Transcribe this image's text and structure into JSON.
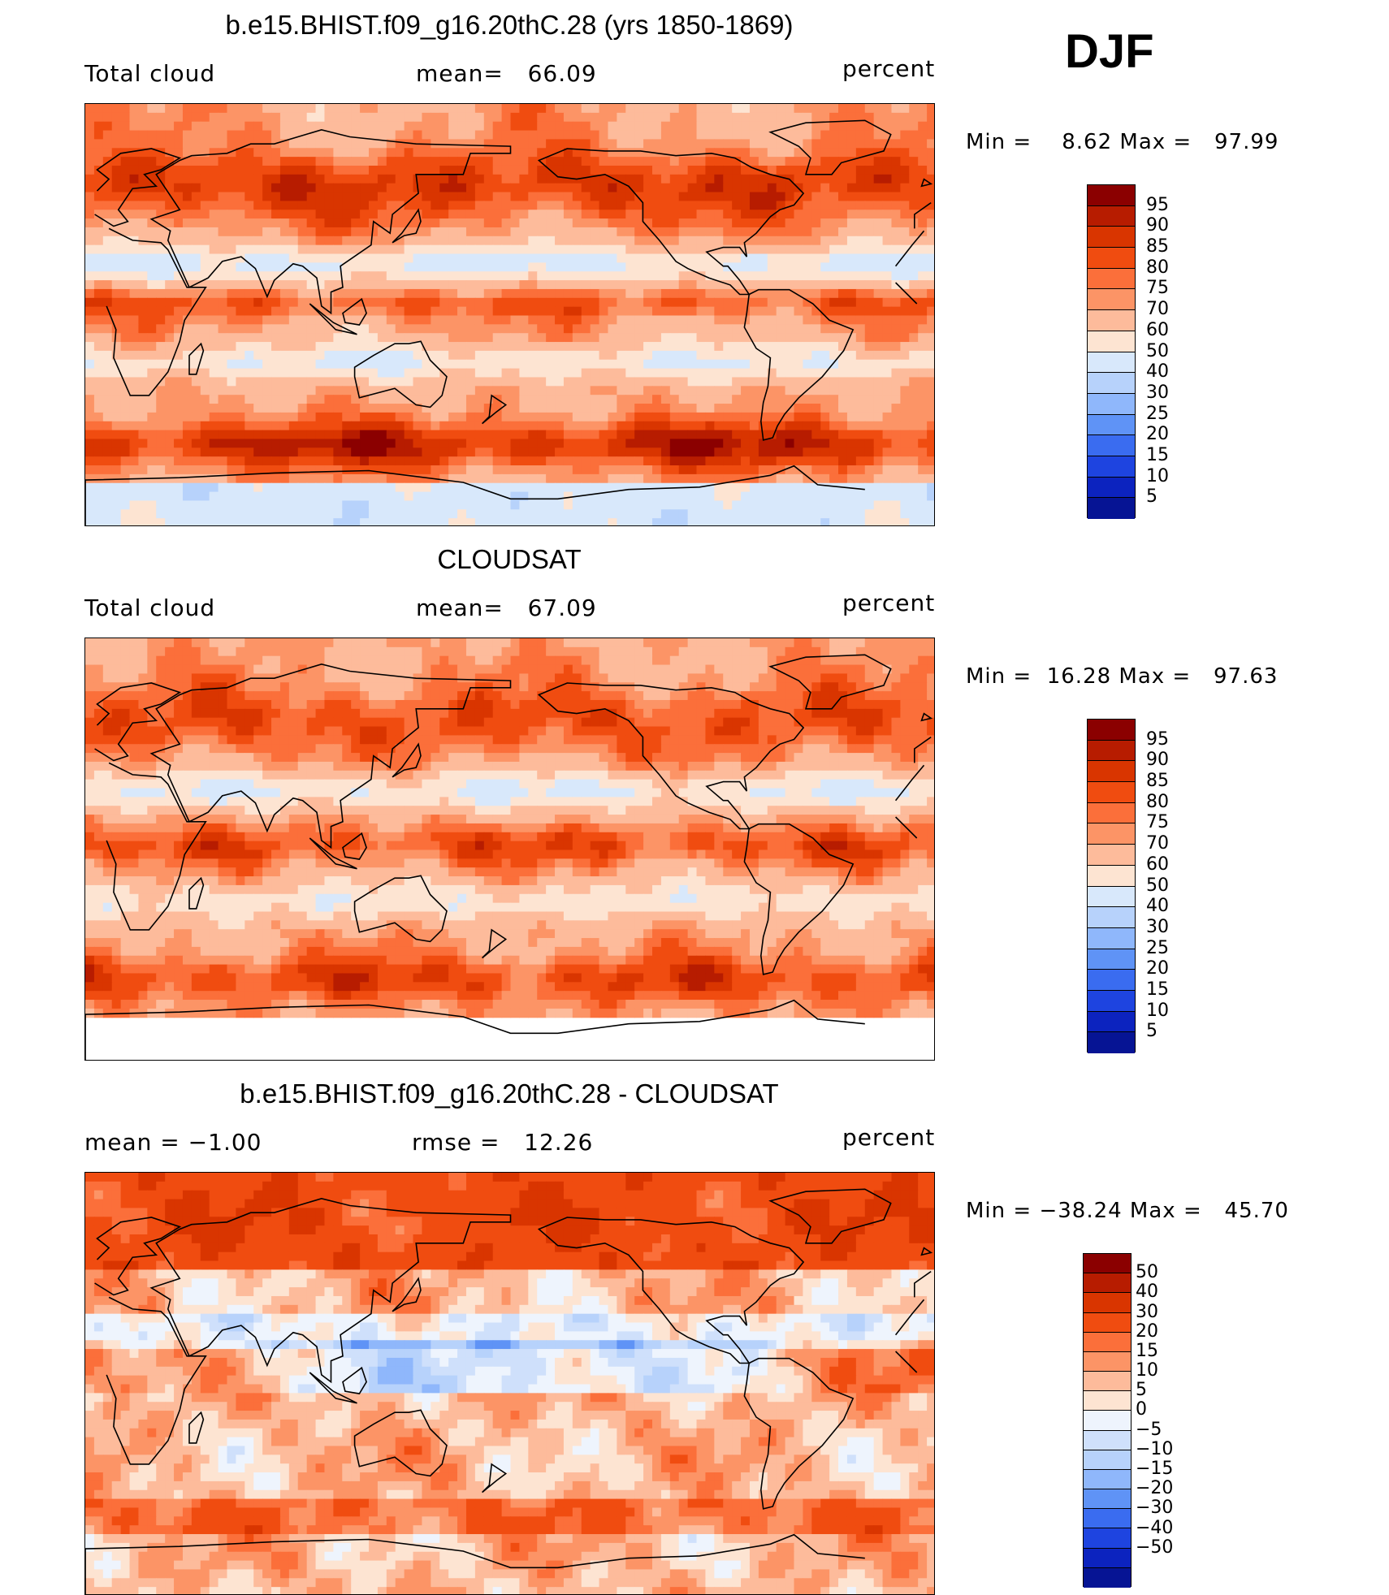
{
  "season": "DJF",
  "panels": [
    {
      "title": "b.e15.BHIST.f09_g16.20thC.28 (yrs 1850-1869)",
      "left": "Total cloud",
      "middle": "mean=   66.09",
      "right": "percent",
      "minmax": "Min =    8.62 Max =   97.99",
      "field": "model",
      "colorbar": "abs"
    },
    {
      "title": "CLOUDSAT",
      "left": "Total cloud",
      "middle": "mean=   67.09",
      "right": "percent",
      "minmax": "Min =  16.28 Max =   97.63",
      "field": "obs",
      "colorbar": "abs"
    },
    {
      "title": "b.e15.BHIST.f09_g16.20thC.28 - CLOUDSAT",
      "left": "mean =   −1.00",
      "middle": "rmse =   12.26",
      "right": "percent",
      "minmax": "Min = −38.24 Max =   45.70",
      "field": "diff",
      "colorbar": "diff"
    }
  ],
  "colorbars": {
    "abs": {
      "labels": [
        "95",
        "90",
        "85",
        "80",
        "75",
        "70",
        "60",
        "50",
        "40",
        "30",
        "25",
        "20",
        "15",
        "10",
        "5"
      ],
      "colors": [
        "#8b0000",
        "#b71c00",
        "#d93500",
        "#f04c10",
        "#fb6f3a",
        "#fc9466",
        "#fdbb9b",
        "#fde4d2",
        "#d8e8fb",
        "#b7d2fb",
        "#8fb7fb",
        "#5f93f6",
        "#3a6cf0",
        "#1e44e0",
        "#0c23bf",
        "#061494"
      ]
    },
    "diff": {
      "labels": [
        "50",
        "40",
        "30",
        "20",
        "15",
        "10",
        "5",
        "0",
        "−5",
        "−10",
        "−15",
        "−20",
        "−30",
        "−40",
        "−50"
      ],
      "colors": [
        "#8b0000",
        "#b71c00",
        "#d93500",
        "#f04c10",
        "#fb6f3a",
        "#fc9466",
        "#fdbb9b",
        "#fde4d2",
        "#eef4fd",
        "#cfe0fb",
        "#b7d2fb",
        "#8fb7fb",
        "#5f93f6",
        "#3a6cf0",
        "#1e44e0",
        "#0c23bf",
        "#061494"
      ]
    }
  }
}
